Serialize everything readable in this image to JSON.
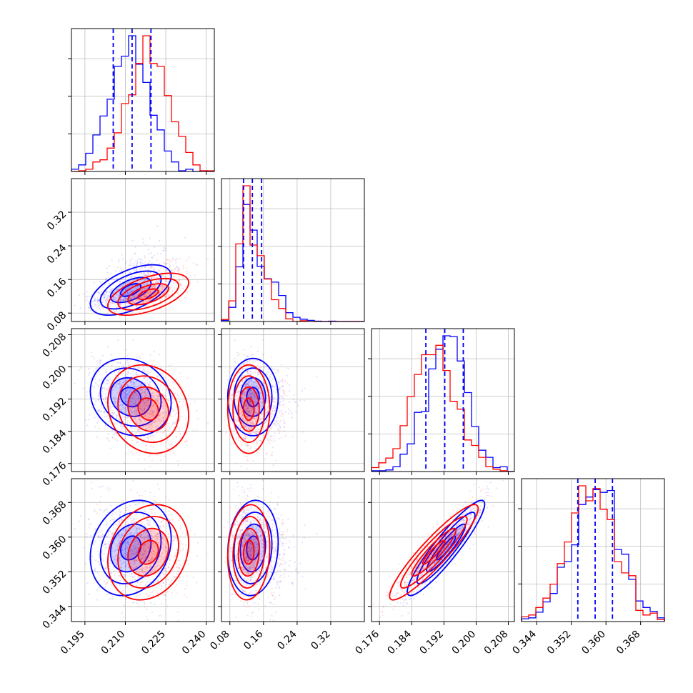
{
  "chart_data": {
    "type": "corner",
    "title": "",
    "series": [
      {
        "color": "#0000ff",
        "fill": true,
        "means": [
          0.212,
          0.135,
          0.1925,
          0.3575
        ],
        "sds": [
          0.0075,
          0.03,
          0.0048,
          0.0055
        ]
      },
      {
        "color": "#ff0000",
        "fill": true,
        "means": [
          0.2185,
          0.125,
          0.1895,
          0.3565
        ],
        "sds": [
          0.0075,
          0.025,
          0.0055,
          0.0055
        ]
      }
    ],
    "quantile_color": "#0000ff",
    "parameters": [
      {
        "range": [
          0.19,
          0.243
        ],
        "ticks": [
          "0.195",
          "0.210",
          "0.225",
          "0.240"
        ],
        "quantiles": [
          0.2055,
          0.2125,
          0.2195
        ]
      },
      {
        "range": [
          0.06,
          0.4
        ],
        "ticks": [
          "0.08",
          "0.16",
          "0.24",
          "0.32"
        ],
        "quantiles": [
          0.1125,
          0.1335,
          0.1555
        ]
      },
      {
        "range": [
          0.174,
          0.2095
        ],
        "ticks": [
          "0.176",
          "0.184",
          "0.192",
          "0.200",
          "0.208"
        ],
        "quantiles": [
          0.1875,
          0.1922,
          0.1968
        ]
      },
      {
        "range": [
          0.3405,
          0.3735
        ],
        "ticks": [
          "0.344",
          "0.352",
          "0.360",
          "0.368"
        ],
        "quantiles": [
          0.3535,
          0.3575,
          0.3615
        ]
      }
    ],
    "correlations": [
      {
        "i": 1,
        "j": 0,
        "rho": [
          0.55,
          0.55
        ]
      },
      {
        "i": 2,
        "j": 0,
        "rho": [
          -0.15,
          -0.15
        ]
      },
      {
        "i": 2,
        "j": 1,
        "rho": [
          0.0,
          0.0
        ]
      },
      {
        "i": 3,
        "j": 0,
        "rho": [
          0.2,
          0.2
        ]
      },
      {
        "i": 3,
        "j": 1,
        "rho": [
          0.1,
          0.1
        ]
      },
      {
        "i": 3,
        "j": 2,
        "rho": [
          0.92,
          0.92
        ]
      }
    ],
    "histogram_bins": 20,
    "grid": true,
    "legend": "none"
  }
}
